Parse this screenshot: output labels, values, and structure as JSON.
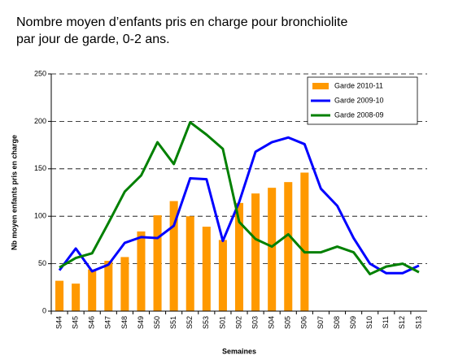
{
  "chart_data": {
    "type": "bar",
    "title": "Nombre moyen d’enfants pris en charge pour bronchiolite",
    "subtitle": "par jour de garde, 0-2 ans.",
    "x_label": "Semaines",
    "y_label": "Nb moyen enfants pris en charge",
    "categories": [
      "S44",
      "S45",
      "S46",
      "S47",
      "S48",
      "S49",
      "S50",
      "S51",
      "S52",
      "S53",
      "S01",
      "S02",
      "S03",
      "S04",
      "S05",
      "S06",
      "S07",
      "S08",
      "S09",
      "S10",
      "S11",
      "S12",
      "S13"
    ],
    "series": [
      {
        "name": "Garde 2010-11",
        "type": "bar",
        "color": "#ff9900",
        "values": [
          32,
          29,
          44,
          53,
          57,
          84,
          101,
          116,
          100,
          89,
          75,
          114,
          124,
          130,
          136,
          146,
          null,
          null,
          null,
          null,
          null,
          null,
          null
        ]
      },
      {
        "name": "Garde 2009-10",
        "type": "line",
        "color": "#0000ff",
        "values": [
          43,
          66,
          42,
          49,
          72,
          78,
          77,
          90,
          140,
          139,
          74,
          115,
          168,
          178,
          183,
          176,
          129,
          111,
          77,
          50,
          40,
          40,
          48
        ]
      },
      {
        "name": "Garde 2008-09",
        "type": "line",
        "color": "#008000",
        "values": [
          46,
          56,
          61,
          93,
          126,
          143,
          178,
          155,
          199,
          186,
          171,
          94,
          76,
          68,
          81,
          62,
          62,
          68,
          62,
          39,
          47,
          50,
          41
        ]
      }
    ],
    "ylim": [
      0,
      250
    ],
    "yticks": [
      0,
      50,
      100,
      150,
      200,
      250
    ],
    "grid": true,
    "legend": "upper right"
  }
}
